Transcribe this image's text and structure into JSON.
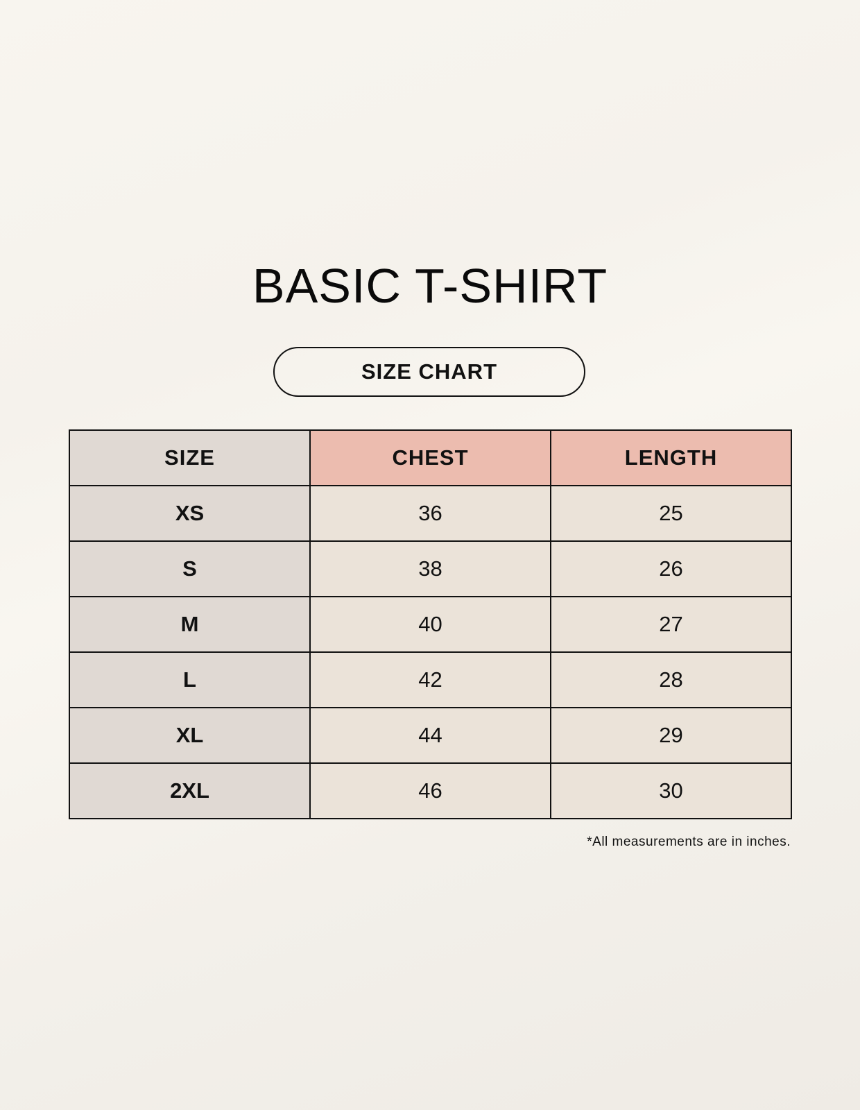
{
  "title": "BASIC T-SHIRT",
  "badge": "SIZE CHART",
  "table": {
    "headers": [
      "SIZE",
      "CHEST",
      "LENGTH"
    ],
    "rows": [
      [
        "XS",
        "36",
        "25"
      ],
      [
        "S",
        "38",
        "26"
      ],
      [
        "M",
        "40",
        "27"
      ],
      [
        "L",
        "42",
        "28"
      ],
      [
        "XL",
        "44",
        "29"
      ],
      [
        "2XL",
        "46",
        "30"
      ]
    ]
  },
  "footnote": "*All measurements are in inches.",
  "colors": {
    "size_column": "#e0d9d3",
    "header_accent": "#ecbcaf",
    "value_cells": "#ebe3d9",
    "background": "#f8f5ef"
  }
}
